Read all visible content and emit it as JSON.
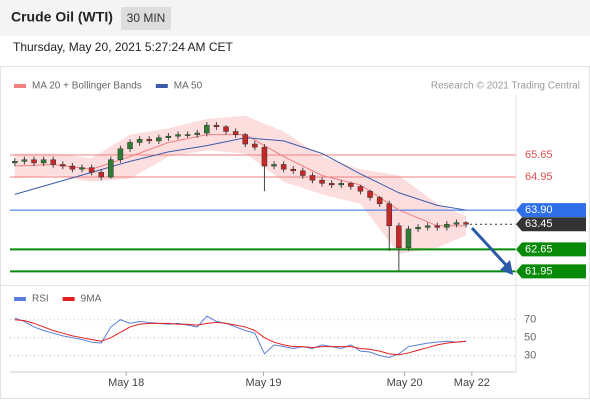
{
  "header": {
    "title": "Crude Oil (WTI)",
    "interval": "30 MIN",
    "datetime": "Thursday, May 20, 2021 5:27:24 AM CET"
  },
  "chart_data": [
    {
      "type": "candlestick",
      "attribution": "Research © 2021 Trading Central",
      "xlim": [
        -0.5,
        52.2
      ],
      "ylim": [
        61.58,
        67.56
      ],
      "xticks": [
        {
          "value": 11.6,
          "label": "May 18"
        },
        {
          "value": 25.9,
          "label": "May 19"
        },
        {
          "value": 40.6,
          "label": "May 20"
        },
        {
          "value": 47.6,
          "label": "May 22"
        }
      ],
      "up_color": "#2e7d32",
      "down_color": "#c62828",
      "open": [
        65.4,
        65.45,
        65.5,
        65.4,
        65.5,
        65.35,
        65.3,
        65.2,
        65.25,
        65.1,
        64.95,
        65.5,
        65.85,
        66.05,
        66.15,
        66.1,
        66.2,
        66.25,
        66.3,
        66.3,
        66.35,
        66.6,
        66.55,
        66.4,
        66.3,
        66.0,
        65.9,
        65.3,
        65.35,
        65.2,
        65.15,
        65.0,
        64.85,
        64.75,
        64.7,
        64.75,
        64.65,
        64.5,
        64.3,
        64.1,
        63.4,
        62.7,
        63.3,
        63.35,
        63.4,
        63.35,
        63.45,
        63.5
      ],
      "high": [
        65.55,
        65.6,
        65.6,
        65.6,
        65.6,
        65.45,
        65.4,
        65.35,
        65.35,
        65.2,
        65.6,
        65.95,
        66.15,
        66.25,
        66.25,
        66.3,
        66.35,
        66.4,
        66.4,
        66.45,
        66.7,
        66.7,
        66.6,
        66.5,
        66.35,
        66.1,
        66.0,
        65.45,
        65.45,
        65.3,
        65.25,
        65.1,
        64.95,
        64.85,
        64.85,
        64.8,
        64.7,
        64.55,
        64.35,
        64.2,
        63.5,
        63.4,
        63.45,
        63.5,
        63.5,
        63.55,
        63.6,
        63.55
      ],
      "low": [
        65.3,
        65.35,
        65.3,
        65.3,
        65.25,
        65.2,
        65.1,
        65.1,
        65.0,
        64.85,
        64.9,
        65.4,
        65.75,
        65.95,
        66.0,
        66.0,
        66.1,
        66.15,
        66.2,
        66.2,
        66.25,
        66.45,
        66.3,
        66.2,
        65.9,
        65.8,
        64.5,
        65.2,
        65.1,
        65.05,
        64.9,
        64.75,
        64.65,
        64.6,
        64.6,
        64.55,
        64.4,
        64.2,
        64.0,
        62.6,
        61.95,
        62.6,
        63.2,
        63.25,
        63.25,
        63.25,
        63.35,
        63.35
      ],
      "close": [
        65.45,
        65.5,
        65.4,
        65.5,
        65.35,
        65.3,
        65.2,
        65.25,
        65.1,
        64.95,
        65.5,
        65.85,
        66.05,
        66.15,
        66.1,
        66.2,
        66.25,
        66.3,
        66.3,
        66.35,
        66.6,
        66.55,
        66.4,
        66.3,
        66.0,
        65.9,
        65.3,
        65.35,
        65.2,
        65.15,
        65.0,
        64.85,
        64.75,
        64.7,
        64.75,
        64.65,
        64.5,
        64.3,
        64.1,
        63.4,
        62.7,
        63.3,
        63.35,
        63.4,
        63.35,
        63.45,
        63.5,
        63.45
      ],
      "indicator_x": [
        0,
        4,
        8,
        12,
        16,
        20,
        24,
        28,
        32,
        36,
        40,
        44,
        47
      ],
      "series": [
        {
          "name": "MA 20 + Bollinger Bands",
          "color": "#f08080",
          "band_color": "#fddede",
          "values": [
            65.3,
            65.35,
            65.2,
            65.6,
            66.05,
            66.3,
            66.3,
            65.6,
            65.0,
            64.7,
            63.9,
            63.4,
            63.4
          ],
          "upper": [
            65.7,
            65.7,
            65.55,
            66.3,
            66.5,
            66.8,
            66.9,
            66.4,
            65.6,
            65.2,
            65.0,
            64.1,
            63.7
          ],
          "lower": [
            64.9,
            65.0,
            64.8,
            64.9,
            65.6,
            65.8,
            65.7,
            64.8,
            64.4,
            64.1,
            62.5,
            62.7,
            63.1
          ]
        },
        {
          "name": "MA 50",
          "color": "#3b5ba9",
          "values": [
            64.4,
            64.75,
            65.1,
            65.45,
            65.75,
            65.95,
            66.2,
            66.1,
            65.7,
            65.05,
            64.45,
            64.05,
            63.9
          ]
        }
      ],
      "levels": [
        {
          "value": 65.65,
          "label": "65.65",
          "color": "#f08080",
          "style": "text"
        },
        {
          "value": 64.95,
          "label": "64.95",
          "color": "#f08080",
          "style": "text"
        },
        {
          "value": 63.9,
          "label": "63.90",
          "color": "#2f6fe8",
          "style": "box"
        },
        {
          "value": 63.45,
          "label": "63.45",
          "color": "#333333",
          "style": "dashed-box"
        },
        {
          "value": 62.65,
          "label": "62.65",
          "color": "#078a07",
          "style": "box"
        },
        {
          "value": 61.95,
          "label": "61.95",
          "color": "#078a07",
          "style": "box"
        }
      ]
    },
    {
      "type": "line",
      "xlim": [
        -0.5,
        52.2
      ],
      "ylim": [
        14,
        92
      ],
      "yticks": [
        30,
        50,
        70
      ],
      "series": [
        {
          "name": "RSI",
          "color": "#5b7fd6",
          "values": [
            72,
            68,
            62,
            58,
            55,
            52,
            50,
            48,
            45,
            44,
            62,
            70,
            66,
            68,
            67,
            66,
            65,
            66,
            64,
            62,
            74,
            68,
            66,
            62,
            58,
            55,
            32,
            42,
            40,
            38,
            40,
            38,
            42,
            40,
            38,
            42,
            35,
            34,
            30,
            28,
            32,
            40,
            42,
            44,
            45,
            46,
            45,
            46
          ]
        },
        {
          "name": "9MA",
          "color": "#e02020",
          "values": [
            70,
            69,
            66,
            62,
            58,
            55,
            52,
            50,
            48,
            46,
            50,
            56,
            62,
            65,
            66,
            66,
            66,
            65,
            65,
            64,
            66,
            67,
            66,
            64,
            62,
            58,
            50,
            45,
            42,
            40,
            40,
            39,
            40,
            40,
            40,
            40,
            38,
            37,
            35,
            32,
            31,
            33,
            36,
            39,
            42,
            44,
            45,
            46
          ]
        }
      ]
    }
  ]
}
